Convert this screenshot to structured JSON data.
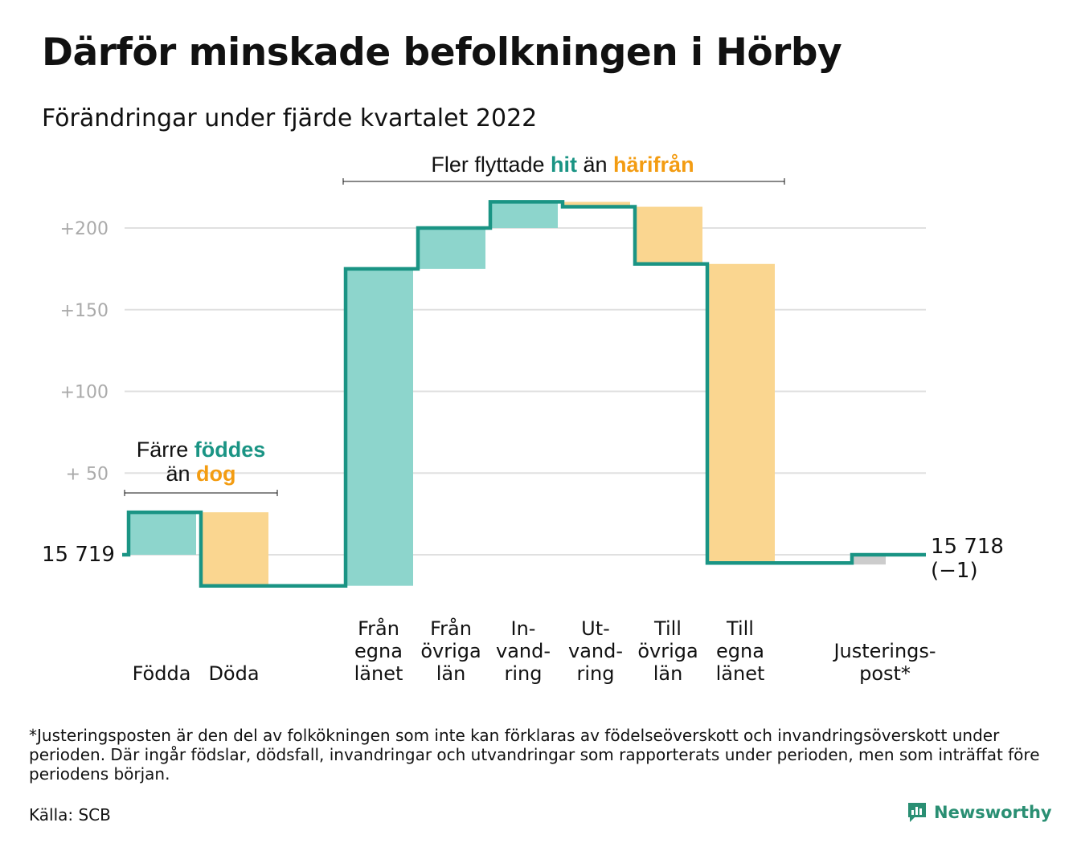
{
  "header": {
    "title": "Därför minskade befolkningen i Hörby",
    "subtitle": "Förändringar under fjärde kvartalet 2022"
  },
  "colors": {
    "in": "#8dd5cc",
    "out": "#fad690",
    "adjust": "#cccccc",
    "line": "#1a9484",
    "teal_text": "#1a9484",
    "orange_text": "#f39c12",
    "grid": "#e0e0e0"
  },
  "annotations": {
    "births": {
      "word1": "Färre ",
      "word2": "föddes",
      "line2_word1": "än ",
      "line2_word2": "dog"
    },
    "migration": {
      "w1": "Fler flyttade ",
      "w2": "hit",
      "w3": " än ",
      "w4": "härifrån"
    }
  },
  "start_label": "15 719",
  "end_label": "15 718",
  "end_change_label": "(−1)",
  "chart_data": {
    "type": "waterfall",
    "title": "Därför minskade befolkningen i Hörby",
    "subtitle": "Förändringar under fjärde kvartalet 2022",
    "baseline_value": 15719,
    "end_value": 15718,
    "total_change": -1,
    "yticks": [
      {
        "value": 50,
        "label": "+ 50"
      },
      {
        "value": 100,
        "label": "+100"
      },
      {
        "value": 150,
        "label": "+150"
      },
      {
        "value": 200,
        "label": "+200"
      }
    ],
    "ylim": [
      -20,
      215
    ],
    "grid": true,
    "steps": [
      {
        "label": [
          "Födda"
        ],
        "change": 26,
        "kind": "in"
      },
      {
        "label": [
          "Döda"
        ],
        "change": -45,
        "kind": "out"
      },
      {
        "label": [
          ""
        ],
        "change": 0,
        "kind": "gap"
      },
      {
        "label": [
          "Från",
          "egna",
          "länet"
        ],
        "change": 194,
        "kind": "in"
      },
      {
        "label": [
          "Från",
          "övriga",
          "län"
        ],
        "change": 25,
        "kind": "in"
      },
      {
        "label": [
          "In-",
          "vand-",
          "ring"
        ],
        "change": 16,
        "kind": "in"
      },
      {
        "label": [
          "Ut-",
          "vand-",
          "ring"
        ],
        "change": -3,
        "kind": "out"
      },
      {
        "label": [
          "Till",
          "övriga",
          "län"
        ],
        "change": -35,
        "kind": "out"
      },
      {
        "label": [
          "Till",
          "egna",
          "länet"
        ],
        "change": -183,
        "kind": "out"
      },
      {
        "label": [
          ""
        ],
        "change": 0,
        "kind": "gap"
      },
      {
        "label": [
          "Justerings-",
          "post*"
        ],
        "change": 5,
        "kind": "adjust"
      }
    ]
  },
  "footnote": "*Justeringsposten är den del av folkökningen som inte kan förklaras av födelseöverskott och invandringsöverskott under perioden. Där ingår födslar, dödsfall, invandringar och utvandringar som rapporterats under perioden, men som inträffat före periodens början.",
  "source": "Källa: SCB",
  "brand": {
    "name": "Newsworthy",
    "icon": "newsworthy-logo-icon"
  }
}
